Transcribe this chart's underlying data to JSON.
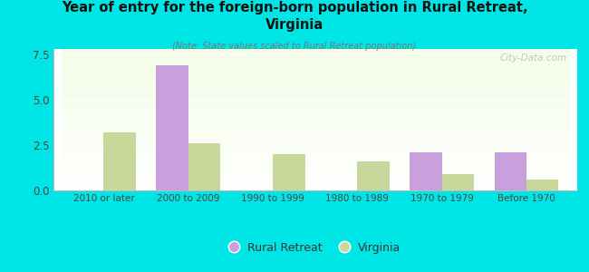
{
  "title": "Year of entry for the foreign-born population in Rural Retreat,\nVirginia",
  "subtitle": "(Note: State values scaled to Rural Retreat population)",
  "categories": [
    "2010 or later",
    "2000 to 2009",
    "1990 to 1999",
    "1980 to 1989",
    "1970 to 1979",
    "Before 1970"
  ],
  "rural_retreat": [
    0,
    6.9,
    0,
    0,
    2.1,
    2.1
  ],
  "virginia": [
    3.2,
    2.6,
    2.0,
    1.6,
    0.9,
    0.6
  ],
  "rural_retreat_color": "#c9a0dc",
  "virginia_color": "#c8d89a",
  "background_color": "#00e5e5",
  "ylim": [
    0,
    7.8
  ],
  "yticks": [
    0,
    2.5,
    5,
    7.5
  ],
  "bar_width": 0.38,
  "watermark": "City-Data.com"
}
